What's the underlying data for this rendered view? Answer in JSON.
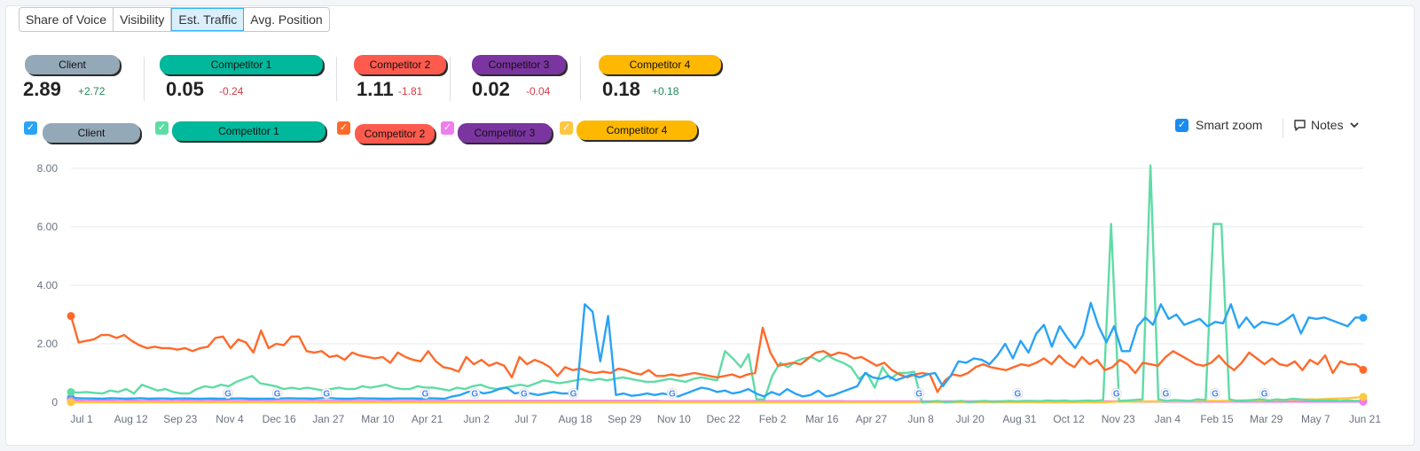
{
  "tabs": [
    "Share of Voice",
    "Visibility",
    "Est. Traffic",
    "Avg. Position"
  ],
  "active_tab": 2,
  "kpis": [
    {
      "name": "Client",
      "value": "2.89",
      "delta": "+2.72",
      "trend": "pos",
      "color": "#94a9b8"
    },
    {
      "name": "Competitor 1",
      "value": "0.05",
      "delta": "-0.24",
      "trend": "neg",
      "color": "#00b89c"
    },
    {
      "name": "Competitor 2",
      "value": "1.11",
      "delta": "-1.81",
      "trend": "neg",
      "color": "#ff5a4e"
    },
    {
      "name": "Competitor 3",
      "value": "0.02",
      "delta": "-0.04",
      "trend": "neg",
      "color": "#7b35a0"
    },
    {
      "name": "Competitor 4",
      "value": "0.18",
      "delta": "+0.18",
      "trend": "pos",
      "color": "#ffb800"
    }
  ],
  "legend": [
    {
      "name": "Client",
      "checkbox_color": "#2aa3f5",
      "pill_color": "#94a9b8"
    },
    {
      "name": "Competitor 1",
      "checkbox_color": "#5fdca6",
      "pill_color": "#00b89c"
    },
    {
      "name": "Competitor 2",
      "checkbox_color": "#ff6a2b",
      "pill_color": "#ff5a4e"
    },
    {
      "name": "Competitor 3",
      "checkbox_color": "#f07cf0",
      "pill_color": "#7b35a0"
    },
    {
      "name": "Competitor 4",
      "checkbox_color": "#ffc640",
      "pill_color": "#ffb800"
    }
  ],
  "controls": {
    "smart_zoom_label": "Smart zoom",
    "notes_label": "Notes"
  },
  "chart_data": {
    "type": "line",
    "title": "",
    "xlabel": "",
    "ylabel": "",
    "ylim": [
      0,
      8
    ],
    "yticks": [
      "0",
      "2.00",
      "4.00",
      "6.00",
      "8.00"
    ],
    "grid": true,
    "x_tick_labels": [
      "Jul 1",
      "Aug 12",
      "Sep 23",
      "Nov 4",
      "Dec 16",
      "Jan 27",
      "Mar 10",
      "Apr 21",
      "Jun 2",
      "Jul 7",
      "Aug 18",
      "Sep 29",
      "Nov 10",
      "Dec 22",
      "Feb 2",
      "Mar 16",
      "Apr 27",
      "Jun 8",
      "Jul 20",
      "Aug 31",
      "Oct 12",
      "Nov 23",
      "Jan 4",
      "Feb 15",
      "Mar 29",
      "May 7",
      "Jun 21"
    ],
    "google_update_markers_at": [
      "Nov 4",
      "Dec 16",
      "Jan 27",
      "Apr 21",
      "Jun 2",
      "Jul 7",
      "Aug 18",
      "Nov 10",
      "Jun 8",
      "Aug 31",
      "Nov 23",
      "Jan 4",
      "Feb 15",
      "Mar 29"
    ],
    "series": [
      {
        "name": "Client",
        "color": "#2aa3f5",
        "values": [
          0.15,
          0.14,
          0.13,
          0.13,
          0.12,
          0.14,
          0.13,
          0.12,
          0.13,
          0.14,
          0.12,
          0.13,
          0.13,
          0.12,
          0.13,
          0.13,
          0.12,
          0.12,
          0.13,
          0.12,
          0.12,
          0.13,
          0.13,
          0.12,
          0.12,
          0.12,
          0.12,
          0.13,
          0.14,
          0.13,
          0.13,
          0.12,
          0.14,
          0.15,
          0.13,
          0.12,
          0.12,
          0.14,
          0.13,
          0.13,
          0.12,
          0.12,
          0.13,
          0.13,
          0.13,
          0.12,
          0.14,
          0.13,
          0.12,
          0.2,
          0.25,
          0.35,
          0.4,
          0.3,
          0.35,
          0.45,
          0.5,
          0.3,
          0.35,
          0.3,
          0.25,
          0.3,
          0.35,
          0.3,
          0.3,
          0.35,
          3.35,
          3.1,
          1.4,
          2.95,
          0.25,
          0.3,
          0.22,
          0.25,
          0.3,
          0.25,
          0.3,
          0.25,
          0.2,
          0.3,
          0.4,
          0.5,
          0.45,
          0.35,
          0.4,
          0.3,
          0.35,
          0.45,
          0.3,
          0.2,
          0.35,
          0.25,
          0.45,
          0.3,
          0.2,
          0.25,
          0.4,
          0.2,
          0.25,
          0.35,
          0.45,
          0.55,
          1.0,
          0.85,
          0.8,
          0.9,
          0.75,
          0.85,
          0.95,
          0.85,
          0.95,
          1.0,
          0.55,
          0.9,
          1.4,
          1.35,
          1.5,
          1.45,
          1.3,
          1.6,
          2.0,
          1.5,
          2.1,
          1.7,
          2.35,
          2.65,
          1.9,
          2.6,
          2.2,
          1.85,
          2.3,
          3.4,
          2.6,
          2.05,
          2.6,
          1.75,
          1.75,
          2.6,
          2.9,
          2.65,
          3.35,
          2.85,
          3.0,
          2.65,
          2.75,
          2.85,
          2.6,
          2.75,
          2.7,
          3.35,
          2.55,
          2.9,
          2.55,
          2.75,
          2.7,
          2.65,
          2.8,
          3.0,
          2.35,
          2.9,
          2.85,
          2.9,
          2.8,
          2.7,
          2.6,
          2.9,
          2.89
        ]
      },
      {
        "name": "Competitor 1",
        "color": "#5fdca6",
        "values": [
          0.35,
          0.33,
          0.35,
          0.32,
          0.3,
          0.4,
          0.35,
          0.45,
          0.3,
          0.6,
          0.5,
          0.4,
          0.45,
          0.35,
          0.3,
          0.3,
          0.45,
          0.55,
          0.5,
          0.6,
          0.55,
          0.7,
          0.8,
          0.9,
          0.65,
          0.6,
          0.55,
          0.45,
          0.5,
          0.45,
          0.5,
          0.45,
          0.4,
          0.45,
          0.5,
          0.45,
          0.45,
          0.55,
          0.5,
          0.55,
          0.6,
          0.5,
          0.45,
          0.45,
          0.55,
          0.5,
          0.5,
          0.45,
          0.4,
          0.5,
          0.45,
          0.55,
          0.6,
          0.5,
          0.45,
          0.5,
          0.55,
          0.6,
          0.55,
          0.65,
          0.75,
          0.7,
          0.65,
          0.7,
          0.75,
          0.8,
          0.75,
          0.8,
          0.75,
          0.8,
          0.85,
          0.8,
          0.75,
          0.7,
          0.7,
          0.75,
          0.8,
          0.75,
          0.7,
          0.8,
          0.85,
          0.8,
          0.75,
          1.75,
          1.5,
          1.2,
          1.65,
          0.1,
          0.1,
          0.9,
          1.35,
          1.2,
          1.4,
          1.5,
          1.55,
          1.4,
          1.6,
          1.45,
          1.35,
          1.2,
          0.8,
          1.0,
          0.5,
          1.2,
          0.8,
          1.0,
          1.0,
          1.05,
          0.0,
          0.02,
          0.05,
          0.0,
          0.02,
          0.05,
          0.0,
          0.03,
          0.05,
          0.02,
          0.03,
          0.05,
          0.04,
          0.05,
          0.05,
          0.04,
          0.06,
          0.05,
          0.06,
          0.04,
          0.05,
          0.06,
          0.05,
          0.08,
          6.1,
          0.05,
          0.06,
          0.08,
          0.1,
          8.1,
          0.1,
          0.05,
          0.08,
          0.06,
          0.05,
          0.1,
          0.08,
          6.1,
          6.1,
          0.1,
          0.05,
          0.06,
          0.08,
          0.1,
          0.06,
          0.1,
          0.08,
          0.12,
          0.1,
          0.08,
          0.06,
          0.07,
          0.06,
          0.05,
          0.06,
          0.05,
          0.05
        ]
      },
      {
        "name": "Competitor 2",
        "color": "#ff6a2b",
        "values": [
          2.95,
          2.05,
          2.1,
          2.15,
          2.3,
          2.3,
          2.2,
          2.3,
          2.1,
          1.95,
          1.85,
          1.9,
          1.85,
          1.85,
          1.8,
          1.85,
          1.75,
          1.85,
          1.9,
          2.2,
          2.25,
          1.85,
          2.15,
          2.05,
          1.7,
          2.45,
          1.85,
          2.0,
          1.95,
          2.25,
          2.25,
          1.75,
          1.7,
          1.75,
          1.55,
          1.6,
          1.45,
          1.7,
          1.6,
          1.55,
          1.5,
          1.55,
          1.35,
          1.7,
          1.55,
          1.45,
          1.4,
          1.75,
          1.4,
          1.2,
          1.15,
          1.05,
          1.55,
          1.3,
          1.45,
          1.25,
          1.35,
          1.25,
          0.85,
          1.55,
          1.3,
          1.45,
          1.35,
          1.2,
          0.9,
          1.2,
          1.1,
          1.15,
          1.05,
          1.0,
          1.05,
          1.0,
          1.15,
          1.1,
          1.0,
          0.95,
          1.1,
          0.9,
          0.9,
          0.95,
          0.9,
          0.95,
          1.0,
          0.95,
          0.9,
          0.85,
          0.9,
          0.95,
          0.85,
          0.95,
          1.0,
          2.55,
          1.7,
          1.25,
          1.3,
          1.35,
          1.3,
          1.5,
          1.7,
          1.75,
          1.6,
          1.7,
          1.65,
          1.5,
          1.55,
          1.4,
          1.25,
          1.35,
          1.1,
          0.95,
          0.85,
          0.95,
          1.0,
          0.95,
          0.35,
          0.75,
          0.95,
          0.9,
          1.0,
          1.2,
          1.3,
          1.2,
          1.15,
          1.1,
          1.2,
          1.3,
          1.25,
          1.35,
          1.5,
          1.3,
          1.6,
          1.35,
          1.2,
          1.55,
          1.3,
          1.45,
          1.1,
          1.2,
          1.45,
          1.3,
          1.0,
          1.35,
          1.3,
          1.25,
          1.55,
          1.75,
          1.6,
          1.45,
          1.3,
          1.25,
          1.35,
          1.6,
          1.3,
          1.1,
          1.35,
          1.7,
          1.5,
          1.3,
          1.5,
          1.3,
          1.25,
          1.4,
          1.1,
          1.45,
          1.3,
          1.6,
          1.0,
          1.4,
          1.3,
          1.3,
          1.11
        ]
      },
      {
        "name": "Competitor 3",
        "color": "#f07cf0",
        "values": [
          0.06,
          0.06,
          0.05,
          0.06,
          0.05,
          0.06,
          0.05,
          0.05,
          0.06,
          0.05,
          0.05,
          0.06,
          0.05,
          0.05,
          0.05,
          0.06,
          0.05,
          0.05,
          0.05,
          0.06,
          0.05,
          0.05,
          0.05,
          0.05,
          0.06,
          0.05,
          0.05,
          0.05,
          0.05,
          0.05,
          0.05,
          0.05,
          0.05,
          0.05,
          0.05,
          0.05,
          0.05,
          0.05,
          0.05,
          0.05,
          0.05,
          0.05,
          0.05,
          0.05,
          0.05,
          0.05,
          0.05,
          0.05,
          0.05,
          0.05,
          0.05,
          0.05,
          0.05,
          0.05,
          0.05,
          0.05,
          0.05,
          0.05,
          0.05,
          0.05,
          0.05,
          0.05,
          0.05,
          0.05,
          0.05,
          0.05,
          0.05,
          0.05,
          0.05,
          0.05,
          0.05,
          0.05,
          0.05,
          0.05,
          0.05,
          0.05,
          0.05,
          0.05,
          0.04,
          0.04,
          0.04,
          0.04,
          0.04,
          0.04,
          0.04,
          0.04,
          0.04,
          0.04,
          0.04,
          0.04,
          0.04,
          0.04,
          0.04,
          0.04,
          0.04,
          0.04,
          0.04,
          0.04,
          0.04,
          0.04,
          0.04,
          0.04,
          0.03,
          0.03,
          0.03,
          0.03,
          0.03,
          0.03,
          0.03,
          0.03,
          0.03,
          0.03,
          0.03,
          0.03,
          0.03,
          0.03,
          0.03,
          0.03,
          0.03,
          0.03,
          0.03,
          0.03,
          0.03,
          0.03,
          0.03,
          0.03,
          0.03,
          0.03,
          0.03,
          0.03,
          0.03,
          0.03,
          0.03,
          0.03,
          0.03,
          0.03,
          0.03,
          0.03,
          0.03,
          0.02,
          0.02,
          0.02,
          0.02,
          0.02,
          0.02,
          0.02,
          0.02,
          0.02,
          0.02,
          0.02,
          0.02,
          0.02,
          0.02,
          0.02,
          0.02,
          0.02,
          0.02,
          0.02,
          0.02,
          0.02,
          0.02,
          0.02,
          0.02,
          0.02,
          0.02,
          0.02,
          0.02,
          0.02,
          0.02,
          0.02,
          0.02
        ]
      },
      {
        "name": "Competitor 4",
        "color": "#ffc640",
        "values": [
          0.0,
          0.0,
          0.0,
          0.0,
          0.0,
          0.0,
          0.0,
          0.0,
          0.0,
          0.0,
          0.0,
          0.0,
          0.0,
          0.0,
          0.0,
          0.0,
          0.0,
          0.0,
          0.0,
          0.0,
          0.0,
          0.0,
          0.0,
          0.0,
          0.0,
          0.0,
          0.0,
          0.0,
          0.0,
          0.0,
          0.0,
          0.0,
          0.0,
          0.0,
          0.0,
          0.0,
          0.0,
          0.0,
          0.0,
          0.0,
          0.0,
          0.0,
          0.0,
          0.0,
          0.0,
          0.0,
          0.0,
          0.0,
          0.0,
          0.0,
          0.0,
          0.0,
          0.0,
          0.0,
          0.0,
          0.0,
          0.0,
          0.0,
          0.0,
          0.0,
          0.0,
          0.0,
          0.0,
          0.0,
          0.0,
          0.0,
          0.0,
          0.0,
          0.0,
          0.0,
          0.0,
          0.0,
          0.0,
          0.0,
          0.0,
          0.0,
          0.0,
          0.0,
          0.0,
          0.0,
          0.0,
          0.0,
          0.0,
          0.0,
          0.0,
          0.0,
          0.0,
          0.0,
          0.0,
          0.0,
          0.0,
          0.0,
          0.0,
          0.0,
          0.0,
          0.0,
          0.0,
          0.0,
          0.0,
          0.0,
          0.0,
          0.0,
          0.0,
          0.0,
          0.0,
          0.0,
          0.0,
          0.0,
          0.0,
          0.0,
          0.0,
          0.0,
          0.0,
          0.0,
          0.0,
          0.0,
          0.0,
          0.0,
          0.0,
          0.0,
          0.0,
          0.0,
          0.0,
          0.0,
          0.0,
          0.0,
          0.0,
          0.0,
          0.0,
          0.0,
          0.0,
          0.0,
          0.0,
          0.0,
          0.02,
          0.02,
          0.02,
          0.03,
          0.03,
          0.03,
          0.03,
          0.04,
          0.04,
          0.04,
          0.04,
          0.05,
          0.05,
          0.05,
          0.05,
          0.05,
          0.06,
          0.06,
          0.06,
          0.06,
          0.07,
          0.08,
          0.08,
          0.09,
          0.09,
          0.1,
          0.1,
          0.11,
          0.12,
          0.13,
          0.14,
          0.16,
          0.18
        ]
      }
    ]
  }
}
